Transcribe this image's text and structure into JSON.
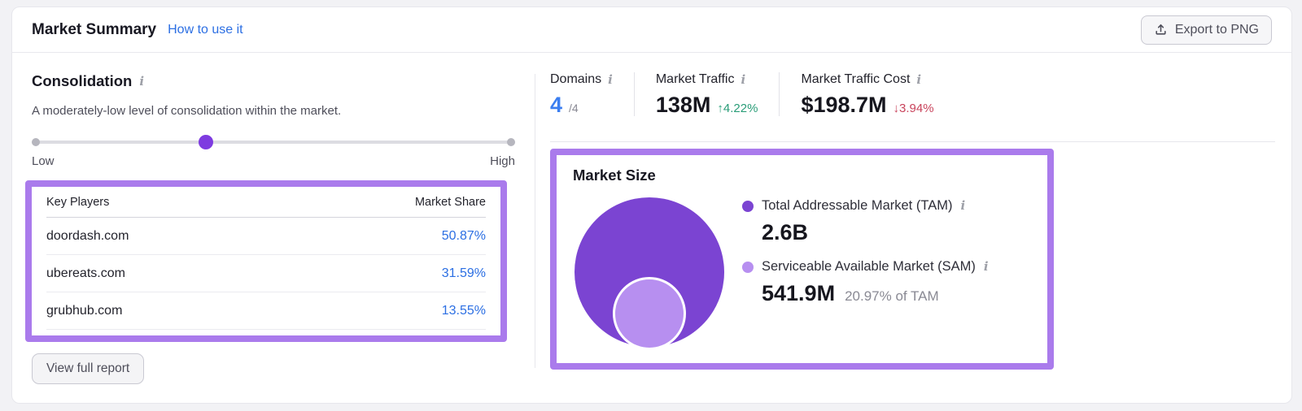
{
  "header": {
    "title": "Market Summary",
    "link": "How to use it",
    "export_label": "Export to PNG"
  },
  "icons": {
    "info": "i",
    "export": "upload-arrow"
  },
  "consolidation": {
    "title": "Consolidation",
    "description": "A moderately-low level of consolidation within the market.",
    "slider": {
      "low_label": "Low",
      "high_label": "High",
      "value_pct": 36
    },
    "table": {
      "columns": [
        "Key Players",
        "Market Share"
      ],
      "rows": [
        {
          "domain": "doordash.com",
          "share": "50.87%"
        },
        {
          "domain": "ubereats.com",
          "share": "31.59%"
        },
        {
          "domain": "grubhub.com",
          "share": "13.55%"
        }
      ]
    },
    "view_report_label": "View full report"
  },
  "stats": [
    {
      "label": "Domains",
      "value": "4",
      "suffix": "/4"
    },
    {
      "label": "Market Traffic",
      "value": "138M",
      "change": "↑4.22%",
      "direction": "up"
    },
    {
      "label": "Market Traffic Cost",
      "value": "$198.7M",
      "change": "↓3.94%",
      "direction": "down"
    }
  ],
  "market_size": {
    "title": "Market Size",
    "tam": {
      "label": "Total Addressable Market (TAM)",
      "value": "2.6B"
    },
    "sam": {
      "label": "Serviceable Available Market (SAM)",
      "value": "541.9M",
      "note": "20.97% of TAM"
    }
  },
  "colors": {
    "highlight": "#aa7bec",
    "tam": "#7b44d2",
    "sam": "#b78ff0",
    "link": "#2c6fe3",
    "domains_blue": "#3b7ef0",
    "up_green": "#2a9d78",
    "down_red": "#c9445c"
  }
}
